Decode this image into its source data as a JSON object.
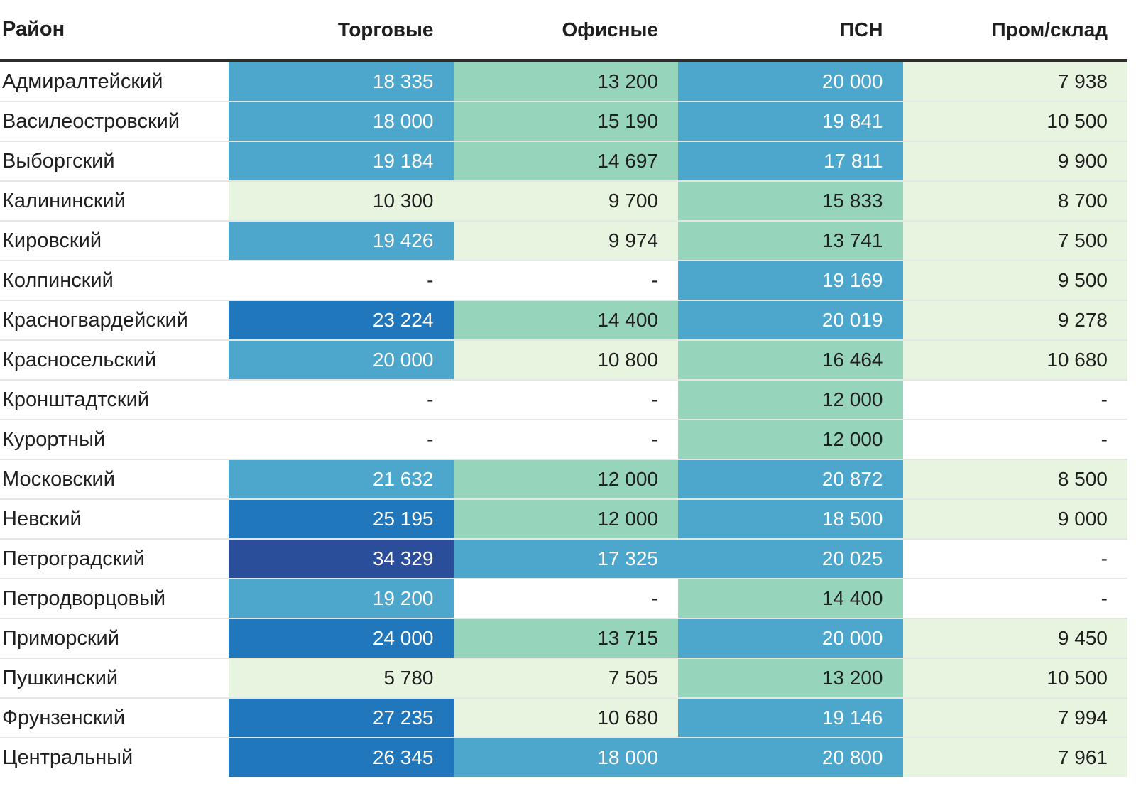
{
  "chart_data": {
    "type": "heatmap",
    "title": "",
    "columns": [
      "Район",
      "Торговые",
      "Офисные",
      "ПСН",
      "Пром/склад"
    ],
    "categories": [
      "Адмиралтейский",
      "Василеостровский",
      "Выборгский",
      "Калининский",
      "Кировский",
      "Колпинский",
      "Красногвардейский",
      "Красносельский",
      "Кронштадтский",
      "Курортный",
      "Московский",
      "Невский",
      "Петроградский",
      "Петродворцовый",
      "Приморский",
      "Пушкинский",
      "Фрунзенский",
      "Центральный"
    ],
    "series": [
      {
        "key": "trade",
        "name": "Торговые",
        "values": [
          18335,
          18000,
          19184,
          10300,
          19426,
          null,
          23224,
          20000,
          null,
          null,
          21632,
          25195,
          34329,
          19200,
          24000,
          5780,
          27235,
          26345
        ]
      },
      {
        "key": "office",
        "name": "Офисные",
        "values": [
          13200,
          15190,
          14697,
          9700,
          9974,
          null,
          14400,
          10800,
          null,
          null,
          12000,
          12000,
          17325,
          null,
          13715,
          7505,
          10680,
          18000
        ]
      },
      {
        "key": "psn",
        "name": "ПСН",
        "values": [
          20000,
          19841,
          17811,
          15833,
          13741,
          19169,
          20019,
          16464,
          12000,
          12000,
          20872,
          18500,
          20025,
          14400,
          20000,
          13200,
          19146,
          20800
        ]
      },
      {
        "key": "industrial",
        "name": "Пром/склад",
        "values": [
          7938,
          10500,
          9900,
          8700,
          7500,
          9500,
          9278,
          10680,
          null,
          null,
          8500,
          9000,
          null,
          null,
          9450,
          10500,
          7994,
          7961
        ]
      }
    ],
    "empty_placeholder": "-",
    "color_scale": {
      "tiers": [
        {
          "max": 11000,
          "bg": "#e7f5e0",
          "text": "#1f1f1f"
        },
        {
          "max": 17000,
          "bg": "#97d4bc",
          "text": "#1f1f1f"
        },
        {
          "max": 22000,
          "bg": "#4da7cd",
          "text": "#ffffff"
        },
        {
          "max": 30000,
          "bg": "#2177bb",
          "text": "#ffffff"
        },
        {
          "max": null,
          "bg": "#2b4e9b",
          "text": "#ffffff"
        }
      ],
      "empty_bg": "#ffffff",
      "empty_text": "#1f1f1f"
    },
    "layout": {
      "grid": "row-separators",
      "value_align": "right",
      "district_align": "left"
    }
  }
}
